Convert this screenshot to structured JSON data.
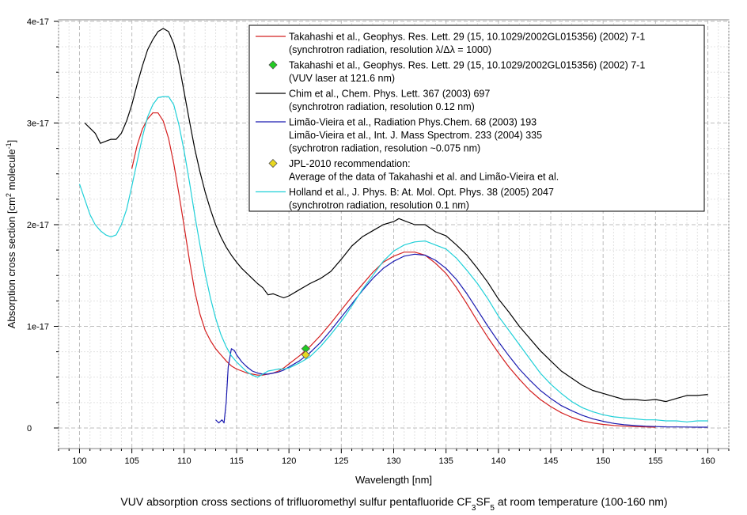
{
  "chart_data": {
    "type": "line",
    "title": "",
    "caption_parts": [
      "VUV absorption cross sections of trifluoromethyl sulfur pentafluoride CF",
      "3",
      "SF",
      "5",
      " at room temperature (100-160 nm)"
    ],
    "xlabel": "Wavelength [nm]",
    "ylabel_parts": [
      "Absorption cross section [cm",
      "2",
      " molecule",
      "-1",
      "]"
    ],
    "xlim": [
      98,
      162
    ],
    "ylim": [
      0,
      4e-17
    ],
    "x_ticks": [
      100,
      105,
      110,
      115,
      120,
      125,
      130,
      135,
      140,
      145,
      150,
      155,
      160
    ],
    "y_ticks": [
      {
        "value": 0,
        "label": "0"
      },
      {
        "value": 1e-17,
        "label": "1e-17"
      },
      {
        "value": 2e-17,
        "label": "2e-17"
      },
      {
        "value": 3e-17,
        "label": "3e-17"
      },
      {
        "value": 4e-17,
        "label": "4e-17"
      }
    ],
    "grid": true,
    "legend_position": "top-right",
    "series": [
      {
        "name": "Takahashi et al., Geophys. Res. Lett. 29 (15, 10.1029/2002GL015356) (2002) 7-1 (synchrotron radiation, resolution λ/Δλ = 1000)",
        "color": "#d42020",
        "marker": "line",
        "x": [
          105,
          105.5,
          106,
          106.5,
          107,
          107.5,
          108,
          108.5,
          109,
          109.5,
          110,
          110.5,
          111,
          111.5,
          112,
          112.5,
          113,
          113.5,
          114,
          114.5,
          115,
          115.5,
          116,
          116.5,
          117,
          117.5,
          118,
          118.5,
          119,
          119.5,
          120,
          121,
          122,
          123,
          124,
          125,
          126,
          127,
          128,
          129,
          130,
          131,
          132,
          133,
          134,
          135,
          136,
          137,
          138,
          139,
          140,
          141,
          142,
          143,
          144,
          145,
          146,
          147,
          148,
          149,
          150,
          151,
          152,
          153,
          154,
          155
        ],
        "y": [
          2.55e-17,
          2.78e-17,
          2.94e-17,
          3.04e-17,
          3.1e-17,
          3.1e-17,
          3.02e-17,
          2.85e-17,
          2.6e-17,
          2.3e-17,
          1.98e-17,
          1.65e-17,
          1.35e-17,
          1.12e-17,
          9.6e-18,
          8.6e-18,
          7.8e-18,
          7.2e-18,
          6.6e-18,
          6.1e-18,
          5.8e-18,
          5.6e-18,
          5.4e-18,
          5.3e-18,
          5.2e-18,
          5.2e-18,
          5.3e-18,
          5.4e-18,
          5.6e-18,
          5.9e-18,
          6.3e-18,
          7.1e-18,
          8e-18,
          9.1e-18,
          1.03e-17,
          1.16e-17,
          1.29e-17,
          1.41e-17,
          1.53e-17,
          1.63e-17,
          1.69e-17,
          1.73e-17,
          1.73e-17,
          1.7e-17,
          1.62e-17,
          1.52e-17,
          1.38e-17,
          1.22e-17,
          1.05e-17,
          8.9e-18,
          7.4e-18,
          6e-18,
          4.8e-18,
          3.7e-18,
          2.8e-18,
          2.1e-18,
          1.5e-18,
          1.05e-18,
          7e-19,
          5e-19,
          3.5e-19,
          2.5e-19,
          1.8e-19,
          1.3e-19,
          1e-19,
          8e-20
        ]
      },
      {
        "name": "Takahashi et al., Geophys. Res. Lett. 29 (15, 10.1029/2002GL015356) (2002) 7-1 (VUV laser at 121.6 nm)",
        "color": "#22cc22",
        "marker": "diamond",
        "x": [
          121.6
        ],
        "y": [
          7.8e-18
        ]
      },
      {
        "name": "Chim et al., Chem. Phys. Lett. 367 (2003) 697 (synchrotron radiation, resolution 0.12 nm)",
        "color": "#000000",
        "marker": "line",
        "x": [
          100.5,
          101,
          101.5,
          102,
          102.5,
          103,
          103.5,
          104,
          104.5,
          105,
          105.5,
          106,
          106.5,
          107,
          107.5,
          108,
          108.5,
          109,
          109.5,
          110,
          110.5,
          111,
          111.5,
          112,
          112.5,
          113,
          113.5,
          114,
          114.5,
          115,
          115.5,
          116,
          116.5,
          117,
          117.5,
          118,
          118.5,
          119,
          119.5,
          120,
          121,
          122,
          123,
          124,
          125,
          126,
          127,
          128,
          129,
          130,
          130.5,
          131,
          132,
          133,
          134,
          135,
          136,
          137,
          138,
          139,
          140,
          141,
          142,
          143,
          144,
          145,
          146,
          147,
          148,
          149,
          150,
          151,
          152,
          153,
          154,
          155,
          156,
          157,
          158,
          159,
          160
        ],
        "y": [
          3e-17,
          2.95e-17,
          2.9e-17,
          2.8e-17,
          2.82e-17,
          2.84e-17,
          2.84e-17,
          2.9e-17,
          3.02e-17,
          3.18e-17,
          3.38e-17,
          3.56e-17,
          3.72e-17,
          3.82e-17,
          3.9e-17,
          3.93e-17,
          3.9e-17,
          3.78e-17,
          3.58e-17,
          3.3e-17,
          3.02e-17,
          2.75e-17,
          2.52e-17,
          2.32e-17,
          2.15e-17,
          2e-17,
          1.88e-17,
          1.78e-17,
          1.7e-17,
          1.63e-17,
          1.57e-17,
          1.52e-17,
          1.47e-17,
          1.42e-17,
          1.38e-17,
          1.31e-17,
          1.32e-17,
          1.3e-17,
          1.28e-17,
          1.3e-17,
          1.36e-17,
          1.42e-17,
          1.47e-17,
          1.54e-17,
          1.66e-17,
          1.79e-17,
          1.88e-17,
          1.94e-17,
          2e-17,
          2.03e-17,
          2.06e-17,
          2.04e-17,
          2e-17,
          2e-17,
          1.93e-17,
          1.89e-17,
          1.8e-17,
          1.7e-17,
          1.57e-17,
          1.43e-17,
          1.27e-17,
          1.14e-17,
          1e-17,
          8.8e-18,
          7.6e-18,
          6.6e-18,
          5.6e-18,
          4.9e-18,
          4.2e-18,
          3.7e-18,
          3.4e-18,
          3.1e-18,
          2.8e-18,
          2.8e-18,
          2.7e-18,
          2.8e-18,
          2.6e-18,
          2.9e-18,
          3.2e-18,
          3.2e-18,
          3.3e-18
        ]
      },
      {
        "name": "Limão-Vieira et al., Radiation Phys.Chem. 68 (2003) 193; Limão-Vieira et al., Int. J. Mass Spectrom. 233 (2004) 335 (sychrotron radiation, resolution ~0.075 nm)",
        "color": "#1a1ab0",
        "marker": "line",
        "x": [
          113,
          113.3,
          113.6,
          113.8,
          114,
          114.2,
          114.5,
          114.8,
          115,
          115.5,
          116,
          116.5,
          117,
          117.5,
          118,
          118.5,
          119,
          119.5,
          120,
          121,
          122,
          123,
          124,
          125,
          126,
          127,
          128,
          129,
          130,
          131,
          132,
          133,
          134,
          135,
          136,
          137,
          138,
          139,
          140,
          141,
          142,
          143,
          144,
          145,
          146,
          147,
          148,
          149,
          150,
          151,
          152,
          153,
          154,
          155,
          156,
          157,
          158,
          159,
          160
        ],
        "y": [
          8e-19,
          5e-19,
          8e-19,
          5e-19,
          2.5e-18,
          6e-18,
          7.8e-18,
          7.6e-18,
          7.2e-18,
          6.5e-18,
          6e-18,
          5.6e-18,
          5.4e-18,
          5.3e-18,
          5.3e-18,
          5.4e-18,
          5.5e-18,
          5.7e-18,
          6e-18,
          6.6e-18,
          7.4e-18,
          8.4e-18,
          9.6e-18,
          1.09e-17,
          1.22e-17,
          1.35e-17,
          1.47e-17,
          1.57e-17,
          1.64e-17,
          1.69e-17,
          1.71e-17,
          1.7e-17,
          1.65e-17,
          1.57e-17,
          1.46e-17,
          1.32e-17,
          1.16e-17,
          1e-17,
          8.5e-18,
          7.1e-18,
          5.8e-18,
          4.7e-18,
          3.7e-18,
          2.9e-18,
          2.2e-18,
          1.7e-18,
          1.25e-18,
          9e-19,
          6.5e-19,
          4.5e-19,
          3.2e-19,
          2.4e-19,
          1.8e-19,
          1.4e-19,
          1.1e-19,
          1e-19,
          9e-20,
          8e-20,
          8e-20
        ]
      },
      {
        "name": "JPL-2010 recommendation: Average of the data of Takahashi et al. and Limão-Vieira et al.",
        "color": "#e8d820",
        "marker": "diamond",
        "x": [
          121.6
        ],
        "y": [
          7.2e-18
        ]
      },
      {
        "name": "Holland et al., J. Phys. B: At. Mol. Opt. Phys. 38 (2005) 2047 (synchrotron radiation, resolution 0.1 nm)",
        "color": "#20d0d8",
        "marker": "line",
        "x": [
          100,
          100.5,
          101,
          101.5,
          102,
          102.5,
          103,
          103.5,
          104,
          104.5,
          105,
          105.5,
          106,
          106.5,
          107,
          107.5,
          108,
          108.5,
          109,
          109.5,
          110,
          110.5,
          111,
          111.5,
          112,
          112.5,
          113,
          113.5,
          114,
          114.5,
          115,
          115.5,
          116,
          116.5,
          117,
          117.5,
          118,
          118.5,
          119,
          119.5,
          120,
          121,
          122,
          123,
          124,
          125,
          126,
          127,
          128,
          129,
          130,
          131,
          132,
          133,
          134,
          135,
          136,
          137,
          138,
          139,
          140,
          141,
          142,
          143,
          144,
          145,
          146,
          147,
          148,
          149,
          150,
          151,
          152,
          153,
          154,
          155,
          156,
          157,
          158,
          159,
          160
        ],
        "y": [
          2.4e-17,
          2.25e-17,
          2.1e-17,
          2e-17,
          1.94e-17,
          1.9e-17,
          1.88e-17,
          1.9e-17,
          2e-17,
          2.15e-17,
          2.38e-17,
          2.62e-17,
          2.86e-17,
          3.06e-17,
          3.18e-17,
          3.25e-17,
          3.26e-17,
          3.26e-17,
          3.18e-17,
          2.98e-17,
          2.72e-17,
          2.42e-17,
          2.1e-17,
          1.8e-17,
          1.52e-17,
          1.28e-17,
          1.08e-17,
          9.2e-18,
          8e-18,
          7.1e-18,
          6.5e-18,
          6e-18,
          5.5e-18,
          5.2e-18,
          5e-18,
          5.3e-18,
          5.6e-18,
          5.7e-18,
          5.8e-18,
          5.8e-18,
          5.9e-18,
          6.4e-18,
          7e-18,
          8e-18,
          9.2e-18,
          1.05e-17,
          1.2e-17,
          1.36e-17,
          1.5e-17,
          1.64e-17,
          1.74e-17,
          1.8e-17,
          1.83e-17,
          1.84e-17,
          1.8e-17,
          1.76e-17,
          1.67e-17,
          1.55e-17,
          1.42e-17,
          1.27e-17,
          1.1e-17,
          9.6e-18,
          8.2e-18,
          6.8e-18,
          5.4e-18,
          4.3e-18,
          3.4e-18,
          2.6e-18,
          2e-18,
          1.6e-18,
          1.3e-18,
          1.1e-18,
          1e-18,
          9e-19,
          8e-19,
          8e-19,
          7e-19,
          7e-19,
          6e-19,
          7e-19,
          7e-19
        ]
      }
    ],
    "legend": [
      {
        "marker": "line",
        "color": "#d42020",
        "lines": [
          "Takahashi et al., Geophys. Res. Lett. 29 (15, 10.1029/2002GL015356) (2002) 7-1",
          "(synchrotron radiation, resolution λ/Δλ = 1000)"
        ]
      },
      {
        "marker": "diamond",
        "color": "#22cc22",
        "lines": [
          "Takahashi et al., Geophys. Res. Lett. 29 (15, 10.1029/2002GL015356) (2002) 7-1",
          "(VUV laser at 121.6 nm)"
        ]
      },
      {
        "marker": "line",
        "color": "#000000",
        "lines": [
          "Chim et al., Chem. Phys. Lett. 367 (2003) 697",
          "(synchrotron radiation, resolution 0.12 nm)"
        ]
      },
      {
        "marker": "line",
        "color": "#1a1ab0",
        "lines": [
          "Limão-Vieira et al., Radiation Phys.Chem. 68 (2003) 193",
          "Limão-Vieira et al., Int. J. Mass Spectrom. 233 (2004) 335",
          "(sychrotron radiation, resolution ~0.075 nm)"
        ]
      },
      {
        "marker": "diamond",
        "color": "#e8d820",
        "lines": [
          "JPL-2010 recommendation:",
          "Average of the data of Takahashi et al. and Limão-Vieira et al."
        ]
      },
      {
        "marker": "line",
        "color": "#20d0d8",
        "lines": [
          "Holland et al., J. Phys. B: At. Mol. Opt. Phys. 38 (2005) 2047",
          "(synchrotron radiation, resolution 0.1 nm)"
        ]
      }
    ]
  }
}
